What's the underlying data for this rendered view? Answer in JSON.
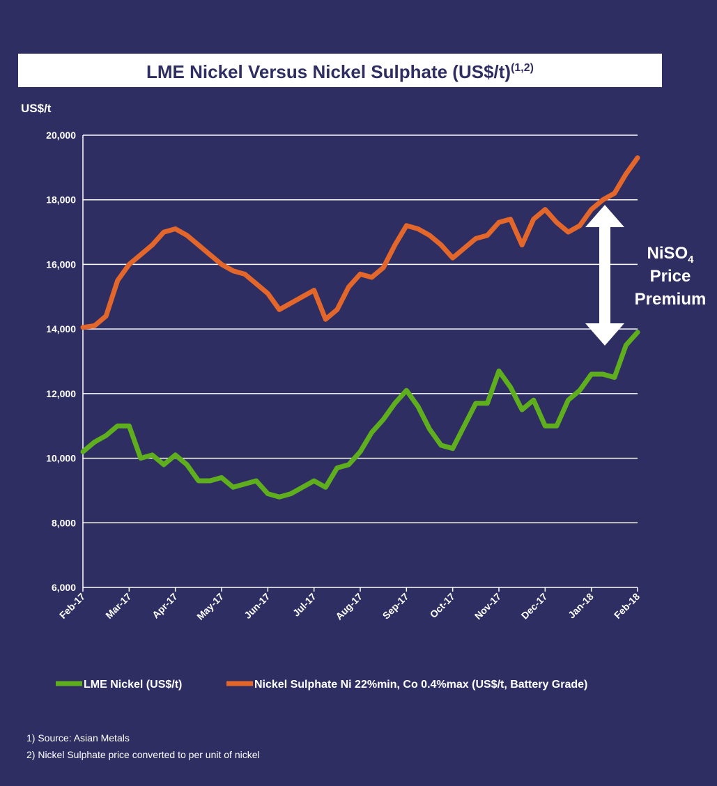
{
  "chart_data": {
    "type": "line",
    "title": "LME Nickel Versus Nickel Sulphate (US$/t)",
    "title_superscript": "(1,2)",
    "y_label": "US$/t",
    "categories": [
      "Feb-17",
      null,
      null,
      null,
      "Mar-17",
      null,
      null,
      null,
      "Apr-17",
      null,
      null,
      null,
      "May-17",
      null,
      null,
      null,
      "Jun-17",
      null,
      null,
      null,
      "Jul-17",
      null,
      null,
      null,
      "Aug-17",
      null,
      null,
      null,
      "Sep-17",
      null,
      null,
      null,
      "Oct-17",
      null,
      null,
      null,
      "Nov-17",
      null,
      null,
      null,
      "Dec-17",
      null,
      null,
      null,
      "Jan-18",
      null,
      null,
      null,
      "Feb-18"
    ],
    "series": [
      {
        "name": "LME Nickel (US$/t)",
        "color": "#5fae1e",
        "values": [
          10200,
          10500,
          10700,
          11000,
          11000,
          10000,
          10100,
          9800,
          10100,
          9800,
          9300,
          9300,
          9400,
          9100,
          9200,
          9300,
          8900,
          8800,
          8900,
          9100,
          9300,
          9100,
          9700,
          9800,
          10200,
          10800,
          11200,
          11700,
          12100,
          11600,
          10900,
          10400,
          10300,
          11000,
          11700,
          11700,
          12700,
          12200,
          11500,
          11800,
          11000,
          11000,
          11800,
          12100,
          12600,
          12600,
          12500,
          13500,
          13900
        ]
      },
      {
        "name": "Nickel Sulphate Ni 22%min, Co 0.4%max (US$/t, Battery Grade)",
        "color": "#e3662a",
        "values": [
          14050,
          14100,
          14400,
          15500,
          16000,
          16300,
          16600,
          17000,
          17100,
          16900,
          16600,
          16300,
          16000,
          15800,
          15700,
          15400,
          15100,
          14600,
          14800,
          15000,
          15200,
          14300,
          14600,
          15300,
          15700,
          15600,
          15900,
          16600,
          17200,
          17100,
          16900,
          16600,
          16200,
          16500,
          16800,
          16900,
          17300,
          17400,
          16600,
          17400,
          17700,
          17300,
          17000,
          17200,
          17700,
          18000,
          18200,
          18800,
          19300
        ]
      }
    ],
    "ylim": [
      6000,
      20000
    ],
    "yticks": [
      {
        "value": 6000,
        "label": "6,000"
      },
      {
        "value": 8000,
        "label": "8,000"
      },
      {
        "value": 10000,
        "label": "10,000"
      },
      {
        "value": 12000,
        "label": "12,000"
      },
      {
        "value": 14000,
        "label": "14,000"
      },
      {
        "value": 16000,
        "label": "16,000"
      },
      {
        "value": 18000,
        "label": "18,000"
      },
      {
        "value": 20000,
        "label": "20,000"
      }
    ],
    "grid": true,
    "legend": "bottom",
    "annotation": {
      "text": "NiSO",
      "subscript": "4",
      "lines": [
        "Price",
        "Premium"
      ]
    },
    "footnotes": [
      "1)  Source: Asian Metals",
      "2)  Nickel Sulphate price converted to per unit of nickel"
    ]
  }
}
